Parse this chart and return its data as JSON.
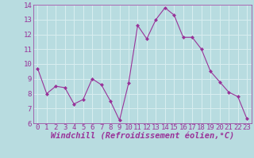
{
  "x": [
    0,
    1,
    2,
    3,
    4,
    5,
    6,
    7,
    8,
    9,
    10,
    11,
    12,
    13,
    14,
    15,
    16,
    17,
    18,
    19,
    20,
    21,
    22,
    23
  ],
  "y": [
    9.7,
    8.0,
    8.5,
    8.4,
    7.3,
    7.6,
    9.0,
    8.6,
    7.5,
    6.2,
    8.7,
    12.6,
    11.7,
    13.0,
    13.8,
    13.3,
    11.8,
    11.8,
    11.0,
    9.5,
    8.8,
    8.1,
    7.8,
    6.3
  ],
  "line_color": "#993399",
  "marker_color": "#993399",
  "bg_color": "#b8dce0",
  "grid_color": "#d8eef0",
  "xlabel": "Windchill (Refroidissement éolien,°C)",
  "xlim": [
    -0.5,
    23.5
  ],
  "ylim": [
    6,
    14
  ],
  "yticks": [
    6,
    7,
    8,
    9,
    10,
    11,
    12,
    13,
    14
  ],
  "xticks": [
    0,
    1,
    2,
    3,
    4,
    5,
    6,
    7,
    8,
    9,
    10,
    11,
    12,
    13,
    14,
    15,
    16,
    17,
    18,
    19,
    20,
    21,
    22,
    23
  ],
  "label_color": "#993399",
  "tick_color": "#993399",
  "tick_fontsize": 6.5,
  "xlabel_fontsize": 7.5
}
